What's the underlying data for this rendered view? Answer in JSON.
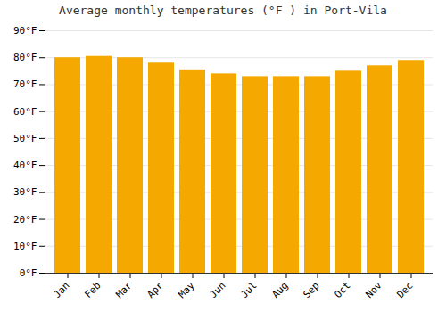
{
  "chart_data": {
    "type": "bar",
    "title": "Average monthly temperatures (°F ) in Port-Vila",
    "categories": [
      "Jan",
      "Feb",
      "Mar",
      "Apr",
      "May",
      "Jun",
      "Jul",
      "Aug",
      "Sep",
      "Oct",
      "Nov",
      "Dec"
    ],
    "values": [
      80,
      80.5,
      80,
      78,
      75.5,
      74,
      73,
      73,
      73,
      75,
      77,
      79
    ],
    "color": "#F5A800",
    "ylim": [
      0,
      90
    ],
    "yticks": [
      {
        "value": 0,
        "label": "0°F"
      },
      {
        "value": 10,
        "label": "10°F"
      },
      {
        "value": 20,
        "label": "20°F"
      },
      {
        "value": 30,
        "label": "30°F"
      },
      {
        "value": 40,
        "label": "40°F"
      },
      {
        "value": 50,
        "label": "50°F"
      },
      {
        "value": 60,
        "label": "60°F"
      },
      {
        "value": 70,
        "label": "70°F"
      },
      {
        "value": 80,
        "label": "80°F"
      },
      {
        "value": 90,
        "label": "90°F"
      }
    ],
    "grid": true
  }
}
